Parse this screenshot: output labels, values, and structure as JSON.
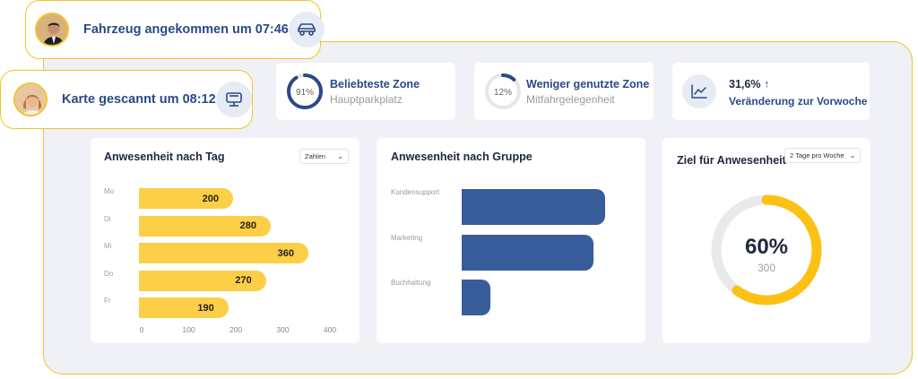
{
  "notifications": [
    {
      "text": "Fahrzeug angekommen um 07:46",
      "icon": "car-icon"
    },
    {
      "text": "Karte gescannt um 08:12",
      "icon": "card-scanner-icon"
    }
  ],
  "stats": [
    {
      "title": "Beliebteste Zone",
      "subtitle": "Hauptparkplatz",
      "percent_label": "91%",
      "percent": 91
    },
    {
      "title": "Weniger genutzte Zone",
      "subtitle": "Mitfahrgelegenheit",
      "percent_label": "12%",
      "percent": 12
    },
    {
      "value": "31,6%",
      "arrow": "↑",
      "subtitle": "Veränderung zur Vorwoche",
      "icon": "line-chart-icon"
    }
  ],
  "day_card": {
    "title": "Anwesenheit nach Tag",
    "dropdown": "Zahlen",
    "chart_data": {
      "type": "bar",
      "orientation": "horizontal",
      "categories": [
        "Mo",
        "Di",
        "Mi",
        "Do",
        "Fr"
      ],
      "values": [
        200,
        280,
        360,
        270,
        190
      ],
      "value_labels": [
        "200",
        "280",
        "360",
        "270",
        "190"
      ],
      "xlim": [
        0,
        400
      ],
      "ticks": [
        "0",
        "100",
        "200",
        "300",
        "400"
      ],
      "color": "#fccf47"
    }
  },
  "group_card": {
    "title": "Anwesenheit nach Gruppe",
    "chart_data": {
      "type": "bar",
      "orientation": "horizontal",
      "categories": [
        "Kundensupport",
        "Marketing",
        "Buchhaltung"
      ],
      "values": [
        100,
        92,
        20
      ],
      "color": "#385c9a"
    }
  },
  "goal_card": {
    "title": "Ziel für Anwesenheit",
    "dropdown": "2 Tage pro Woche",
    "percent_label": "60%",
    "percent": 60,
    "value": "300",
    "colors": {
      "fill": "#fcc114",
      "track": "#e9e9e9"
    }
  }
}
